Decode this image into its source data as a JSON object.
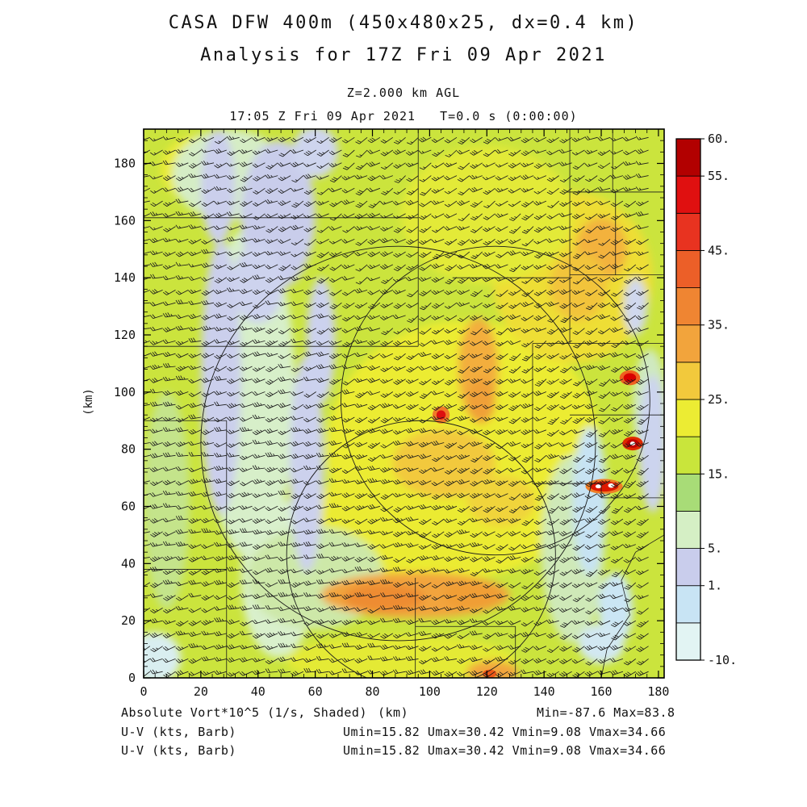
{
  "title": {
    "line1": "CASA DFW 400m (450x480x25, dx=0.4 km)",
    "line2": "Analysis for 17Z Fri 09 Apr 2021"
  },
  "header": {
    "level": "Z=2.000 km AGL",
    "time": "17:05 Z Fri 09 Apr 2021   T=0.0 s (0:00:00)"
  },
  "axes": {
    "x_ticks": [
      0,
      20,
      40,
      60,
      80,
      100,
      120,
      140,
      160,
      180
    ],
    "y_ticks": [
      0,
      20,
      40,
      60,
      80,
      100,
      120,
      140,
      160,
      180
    ],
    "major_step": 20,
    "minor_step": 4,
    "x_label": "(km)",
    "y_label": "(km)"
  },
  "colorbar": {
    "levels": [
      -10,
      -5,
      1,
      5,
      10,
      15,
      20,
      25,
      30,
      35,
      40,
      45,
      50,
      55,
      60
    ],
    "colors_bottom_to_top": [
      "#e2f4f3",
      "#c8e4f4",
      "#c9cdec",
      "#d5efc5",
      "#a8dc77",
      "#c9e53b",
      "#ecec33",
      "#f2c93c",
      "#f2a43c",
      "#ef8532",
      "#ec5f28",
      "#e83320",
      "#e01010",
      "#b20000"
    ],
    "tick_labels": [
      {
        "i": 0,
        "t": "-10."
      },
      {
        "i": 2,
        "t": "1."
      },
      {
        "i": 3,
        "t": "5."
      },
      {
        "i": 5,
        "t": "15."
      },
      {
        "i": 7,
        "t": "25."
      },
      {
        "i": 9,
        "t": "35."
      },
      {
        "i": 11,
        "t": "45."
      },
      {
        "i": 13,
        "t": "55."
      },
      {
        "i": 14,
        "t": "60."
      }
    ]
  },
  "footer": {
    "field_label": "Absolute Vort*10^5 (1/s, Shaded)",
    "xaxis_unit": "(km)",
    "minmax": "Min=-87.6 Max=83.8",
    "barb_label_1": "U-V (kts, Barb)",
    "barb_stats_1": "Umin=15.82 Umax=30.42 Vmin=9.08 Vmax=34.66",
    "barb_label_2": "U-V (kts, Barb)",
    "barb_stats_2": "Umin=15.82 Umax=30.42 Vmin=9.08 Vmax=34.66"
  },
  "chart_data": {
    "type": "heatmap",
    "title": "CASA DFW 400m absolute vorticity analysis with wind barbs",
    "field": "Absolute Vort*10^5 (1/s, Shaded)",
    "field_min": -87.6,
    "field_max": 83.8,
    "x_range_km": [
      0,
      182
    ],
    "y_range_km": [
      0,
      192
    ],
    "base_color": "#cbe43d",
    "shade_levels": [
      -10,
      -5,
      1,
      5,
      10,
      15,
      20,
      25,
      30,
      35,
      40,
      45,
      50,
      55,
      60
    ],
    "wind": {
      "units": "kts",
      "umin": 15.82,
      "umax": 30.42,
      "vmin": 9.08,
      "vmax": 34.66,
      "mean_dir_from_deg": 245,
      "mean_speed_kts": 25,
      "grid_spacing_km": 4.5,
      "barb_color": "#1c1c1c"
    },
    "patches": [
      [
        112,
        80,
        48,
        45,
        "#ecec33"
      ],
      [
        95,
        55,
        35,
        25,
        "#ebeb32"
      ],
      [
        150,
        140,
        28,
        30,
        "#eede36"
      ],
      [
        120,
        162,
        30,
        24,
        "#e3ea38"
      ],
      [
        20,
        178,
        14,
        12,
        "#ebeb36"
      ],
      [
        90,
        6,
        40,
        9,
        "#e4ea36"
      ],
      [
        37,
        100,
        16,
        58,
        "#d7efc9"
      ],
      [
        47,
        35,
        13,
        28,
        "#d9f0cc"
      ],
      [
        30,
        176,
        20,
        16,
        "#d5edc5"
      ],
      [
        150,
        45,
        11,
        33,
        "#cfe9b8"
      ],
      [
        8,
        62,
        8,
        38,
        "#c4e48b"
      ],
      [
        60,
        35,
        24,
        18,
        "#cde8a8"
      ],
      [
        177,
        95,
        6,
        20,
        "#cfe9c0"
      ],
      [
        27,
        105,
        7,
        48,
        "#cbcfec"
      ],
      [
        26,
        172,
        6,
        20,
        "#cbcfec"
      ],
      [
        57,
        75,
        6,
        38,
        "#ccd1ed"
      ],
      [
        47,
        162,
        13,
        26,
        "#c9cdeb"
      ],
      [
        62,
        118,
        5,
        22,
        "#ccd2ee"
      ],
      [
        40,
        138,
        9,
        14,
        "#cdd3ee"
      ],
      [
        60,
        184,
        8,
        9,
        "#ced5ee"
      ],
      [
        156,
        62,
        6,
        26,
        "#c7e3f3"
      ],
      [
        165,
        24,
        6,
        13,
        "#cbe6f4"
      ],
      [
        178,
        82,
        5,
        24,
        "#ccd4ee"
      ],
      [
        4,
        7,
        9,
        9,
        "#d9eef0"
      ],
      [
        160,
        12,
        8,
        7,
        "#d2e8f2"
      ],
      [
        172,
        130,
        4,
        10,
        "#d0d8ee"
      ],
      [
        95,
        29,
        33,
        8,
        "#f2a43c"
      ],
      [
        84,
        28,
        14,
        5,
        "#ee8c32"
      ],
      [
        115,
        29,
        10,
        5,
        "#f09e36"
      ],
      [
        117,
        108,
        7,
        18,
        "#f3ae3c"
      ],
      [
        118,
        97,
        5,
        8,
        "#f0a038"
      ],
      [
        105,
        75,
        18,
        12,
        "#f2c93c"
      ],
      [
        125,
        62,
        12,
        9,
        "#f0d43a"
      ],
      [
        160,
        150,
        9,
        11,
        "#f3b23c"
      ],
      [
        152,
        137,
        10,
        12,
        "#f2c43a"
      ],
      [
        122,
        2,
        9,
        4,
        "#f2a43c"
      ]
    ],
    "hotspots": [
      [
        104,
        92,
        3,
        3,
        "#f07a28"
      ],
      [
        104,
        92,
        1.6,
        1.6,
        "#dd1010"
      ],
      [
        170,
        105,
        3.6,
        2.6,
        "#ef6020"
      ],
      [
        170,
        105,
        2.2,
        1.6,
        "#d80000"
      ],
      [
        171,
        82,
        3.6,
        2.4,
        "#e02800"
      ],
      [
        171,
        82,
        2.2,
        1.5,
        "#c00000"
      ],
      [
        171,
        82,
        0.9,
        0.7,
        "#ffffff"
      ],
      [
        161,
        67,
        6.5,
        2.6,
        "#ef7e28"
      ],
      [
        161,
        67,
        5,
        1.8,
        "#dd1800"
      ],
      [
        159,
        67,
        1,
        0.7,
        "#ffffff"
      ],
      [
        163.5,
        67.3,
        1.1,
        0.8,
        "#ffffff"
      ],
      [
        121,
        1.5,
        2.4,
        1.4,
        "#ee5818"
      ]
    ],
    "range_rings": [
      {
        "cx": 89,
        "cy": 82,
        "r": 69
      },
      {
        "cx": 123,
        "cy": 97,
        "r": 54
      },
      {
        "cx": 97,
        "cy": 43,
        "r": 47
      }
    ],
    "county_segments": [
      [
        0,
        161,
        96,
        161
      ],
      [
        96,
        192,
        96,
        116
      ],
      [
        0,
        116,
        96,
        116
      ],
      [
        149,
        192,
        149,
        117
      ],
      [
        136,
        117,
        182,
        117
      ],
      [
        136,
        117,
        136,
        68
      ],
      [
        149,
        92,
        182,
        92
      ],
      [
        136,
        68,
        160,
        68
      ],
      [
        160,
        68,
        160,
        63
      ],
      [
        160,
        63,
        182,
        63
      ],
      [
        148,
        170,
        182,
        170
      ],
      [
        164,
        192,
        164,
        170
      ],
      [
        165,
        170,
        165,
        141
      ],
      [
        149,
        141,
        182,
        141
      ],
      [
        108,
        140,
        149,
        140
      ],
      [
        0,
        90,
        29,
        90
      ],
      [
        29,
        90,
        29,
        0
      ],
      [
        0,
        38,
        29,
        38
      ],
      [
        95,
        35,
        95,
        0
      ],
      [
        95,
        18,
        130,
        18
      ],
      [
        130,
        18,
        130,
        0
      ],
      [
        182,
        50,
        172,
        44
      ],
      [
        172,
        44,
        167,
        34
      ],
      [
        167,
        34,
        170,
        22
      ],
      [
        170,
        22,
        162,
        10
      ],
      [
        162,
        10,
        160,
        0
      ]
    ]
  }
}
